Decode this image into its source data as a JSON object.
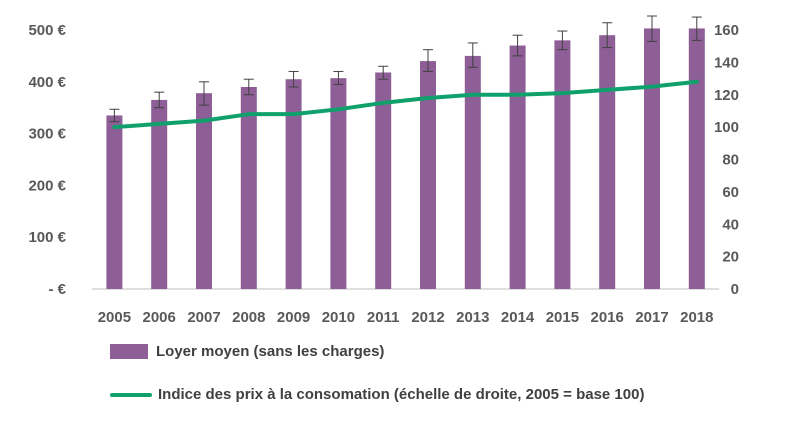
{
  "colors": {
    "bar": "#8e5f96",
    "line": "#10a06c",
    "error": "#404040",
    "axis": "#bfbfbf",
    "text": "#595959"
  },
  "chart_data": {
    "type": "bar",
    "categories": [
      "2005",
      "2006",
      "2007",
      "2008",
      "2009",
      "2010",
      "2011",
      "2012",
      "2013",
      "2014",
      "2015",
      "2016",
      "2017",
      "2018"
    ],
    "series": [
      {
        "name": "Loyer moyen (sans les charges)",
        "type": "bar",
        "axis": "left",
        "values": [
          335,
          365,
          378,
          390,
          405,
          407,
          418,
          440,
          450,
          470,
          480,
          490,
          503,
          503
        ],
        "error_low": [
          323,
          350,
          355,
          375,
          390,
          395,
          405,
          420,
          428,
          450,
          462,
          466,
          478,
          480
        ],
        "error_high": [
          347,
          380,
          400,
          405,
          420,
          420,
          430,
          462,
          475,
          490,
          498,
          514,
          527,
          525
        ]
      },
      {
        "name": "Indice des prix à la consomation (échelle de droite, 2005 = base 100)",
        "type": "line",
        "axis": "right",
        "values": [
          100,
          102,
          104,
          108,
          108,
          111,
          115,
          118,
          120,
          120,
          121,
          123,
          125,
          128
        ]
      }
    ],
    "y_left": {
      "ylim": [
        0,
        500
      ],
      "ticks": [
        0,
        100,
        200,
        300,
        400,
        500
      ],
      "tick_labels": [
        "-  €",
        "100 €",
        "200 €",
        "300 €",
        "400 €",
        "500 €"
      ]
    },
    "y_right": {
      "ylim": [
        0,
        160
      ],
      "ticks": [
        0,
        20,
        40,
        60,
        80,
        100,
        120,
        140,
        160
      ],
      "tick_labels": [
        "0",
        "20",
        "40",
        "60",
        "80",
        "100",
        "120",
        "140",
        "160"
      ]
    },
    "title": "",
    "xlabel": "",
    "ylabel": "",
    "grid": false,
    "legend_position": "bottom-left"
  }
}
